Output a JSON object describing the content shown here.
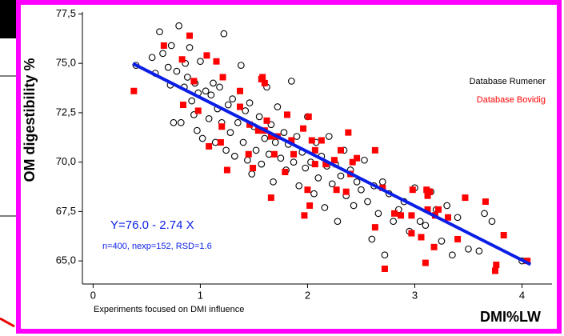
{
  "chart_data": {
    "type": "scatter",
    "x_label": "DMI%LW",
    "y_label": "OM digestibility %",
    "annotations": [
      "Y=76.0 - 2.74 X",
      "n=400, nexp=152, RSD=1.6",
      "Experiments focused on DMI influence"
    ],
    "xlim": [
      -0.1,
      4.28
    ],
    "ylim": [
      63.83,
      77.6
    ],
    "xticks": [
      0,
      1,
      2,
      3,
      4
    ],
    "yticks": [
      {
        "value": 65.0,
        "label": "65,0"
      },
      {
        "value": 67.5,
        "label": "67,5"
      },
      {
        "value": 70.0,
        "label": "70,0"
      },
      {
        "value": 72.5,
        "label": "72,5"
      },
      {
        "value": 75.0,
        "label": "75,0"
      },
      {
        "value": 77.5,
        "label": "77,5"
      }
    ],
    "fit": {
      "color": "#0a1ee6",
      "x": [
        0.37,
        4.08
      ],
      "values": [
        74.99,
        64.82
      ]
    },
    "series": [
      {
        "name": "Database Rumener",
        "color": "#000000",
        "marker": "circle",
        "x": [
          0.4,
          0.55,
          0.58,
          0.62,
          0.65,
          0.7,
          0.72,
          0.73,
          0.75,
          0.78,
          0.8,
          0.82,
          0.85,
          0.86,
          0.88,
          0.9,
          0.92,
          0.94,
          0.95,
          0.97,
          0.98,
          1.0,
          1.02,
          1.05,
          1.08,
          1.1,
          1.12,
          1.14,
          1.16,
          1.18,
          1.2,
          1.22,
          1.24,
          1.26,
          1.28,
          1.3,
          1.32,
          1.35,
          1.38,
          1.4,
          1.42,
          1.44,
          1.46,
          1.48,
          1.5,
          1.52,
          1.55,
          1.57,
          1.6,
          1.62,
          1.64,
          1.66,
          1.68,
          1.7,
          1.72,
          1.75,
          1.78,
          1.8,
          1.82,
          1.85,
          1.87,
          1.9,
          1.92,
          1.95,
          1.98,
          2.0,
          2.03,
          2.06,
          2.08,
          2.1,
          2.13,
          2.16,
          2.18,
          2.2,
          2.23,
          2.26,
          2.28,
          2.31,
          2.34,
          2.36,
          2.4,
          2.43,
          2.46,
          2.5,
          2.53,
          2.56,
          2.6,
          2.62,
          2.66,
          2.7,
          2.72,
          2.76,
          2.8,
          2.85,
          2.9,
          2.95,
          3.0,
          3.05,
          3.1,
          3.15,
          3.2,
          3.25,
          3.3,
          3.35,
          3.4,
          3.5,
          3.6,
          3.65,
          3.72,
          4.0
        ],
        "values": [
          74.9,
          75.3,
          74.5,
          76.6,
          75.5,
          74.8,
          73.9,
          75.9,
          72.0,
          74.6,
          76.9,
          72.0,
          73.8,
          75.0,
          74.3,
          75.8,
          73.1,
          72.4,
          74.0,
          71.6,
          73.5,
          75.1,
          71.2,
          73.6,
          72.2,
          73.4,
          74.0,
          71.0,
          72.7,
          73.8,
          72.0,
          76.5,
          70.6,
          72.9,
          71.5,
          73.2,
          70.3,
          72.0,
          74.9,
          71.0,
          72.6,
          70.1,
          73.0,
          69.4,
          71.8,
          70.6,
          72.3,
          69.9,
          71.2,
          73.8,
          70.4,
          71.9,
          69.0,
          71.0,
          72.8,
          70.2,
          71.5,
          69.6,
          70.9,
          74.1,
          70.0,
          71.3,
          68.8,
          70.5,
          69.7,
          72.3,
          70.0,
          68.4,
          71.0,
          69.2,
          70.3,
          67.7,
          69.8,
          71.3,
          68.9,
          69.9,
          67.0,
          69.3,
          70.6,
          68.3,
          69.6,
          67.8,
          69.0,
          68.6,
          70.1,
          68.0,
          66.1,
          68.8,
          67.4,
          69.0,
          65.3,
          68.4,
          67.0,
          67.6,
          68.0,
          66.5,
          68.7,
          67.0,
          66.8,
          68.5,
          67.6,
          66.0,
          67.8,
          65.3,
          67.2,
          65.6,
          65.5,
          67.4,
          67.0,
          65.0
        ]
      },
      {
        "name": "Database Bovidig",
        "color": "#ff0000",
        "marker": "square",
        "x": [
          0.38,
          0.66,
          0.9,
          0.83,
          1.06,
          1.15,
          0.94,
          1.21,
          0.84,
          0.98,
          1.08,
          1.19,
          1.25,
          1.2,
          1.37,
          1.37,
          1.57,
          1.58,
          1.6,
          1.46,
          1.45,
          1.49,
          1.54,
          1.6,
          1.62,
          1.66,
          1.72,
          1.69,
          1.81,
          1.85,
          1.87,
          1.66,
          1.79,
          1.96,
          2.01,
          2.04,
          2.07,
          2.13,
          2.17,
          2.07,
          2.0,
          2.02,
          1.97,
          2.25,
          2.27,
          2.31,
          2.38,
          2.42,
          2.4,
          2.36,
          2.46,
          2.63,
          2.7,
          2.63,
          2.72,
          2.81,
          2.87,
          2.98,
          2.97,
          3.06,
          3.11,
          3.12,
          3.14,
          3.1,
          3.12,
          3.18,
          3.19,
          3.22,
          3.31,
          3.4,
          3.47,
          3.66,
          3.83,
          3.76,
          3.75,
          4.05,
          2.97
        ],
        "values": [
          73.6,
          75.9,
          76.4,
          75.2,
          75.4,
          75.1,
          74.1,
          74.3,
          72.9,
          72.6,
          70.8,
          71.0,
          69.6,
          71.8,
          73.6,
          72.8,
          74.2,
          74.3,
          74.0,
          71.9,
          70.4,
          69.7,
          71.6,
          71.6,
          72.1,
          71.3,
          71.3,
          70.4,
          72.4,
          71.1,
          70.4,
          68.2,
          69.5,
          71.7,
          72.3,
          71.1,
          70.6,
          71.1,
          69.9,
          69.9,
          68.6,
          67.8,
          67.3,
          70.1,
          68.6,
          70.6,
          71.5,
          70.0,
          69.4,
          68.5,
          70.2,
          70.6,
          68.7,
          66.7,
          64.6,
          67.4,
          67.3,
          68.6,
          66.4,
          66.2,
          68.6,
          68.3,
          68.5,
          64.9,
          67.6,
          65.7,
          67.3,
          67.6,
          67.2,
          66.1,
          68.2,
          68.0,
          66.3,
          64.8,
          64.5,
          65.0,
          67.3
        ]
      }
    ]
  }
}
